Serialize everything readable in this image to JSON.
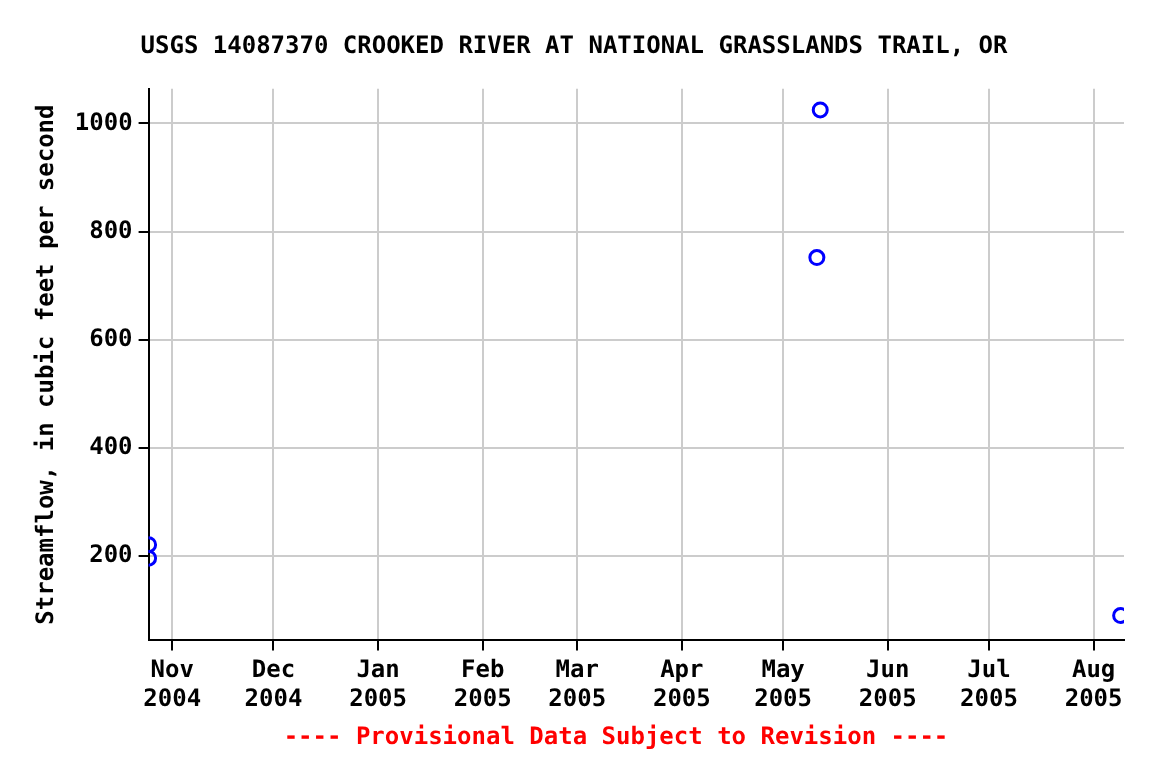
{
  "chart_data": {
    "type": "scatter",
    "title": "USGS 14087370 CROOKED RIVER AT NATIONAL GRASSLANDS TRAIL, OR",
    "ylabel": "Streamflow, in cubic feet per second",
    "x": [
      "2004-10-25",
      "2004-10-25",
      "2005-05-11",
      "2005-05-12",
      "2005-08-09"
    ],
    "series": [
      {
        "color": "#0000ff",
        "values": [
          221,
          196,
          752,
          1025,
          90
        ]
      }
    ],
    "xlim": [
      "2004-10-25",
      "2005-08-10"
    ],
    "xticks": [
      {
        "value": "2004-11-01",
        "label": "Nov 2004"
      },
      {
        "value": "2004-12-01",
        "label": "Dec 2004"
      },
      {
        "value": "2005-01-01",
        "label": "Jan 2005"
      },
      {
        "value": "2005-02-01",
        "label": "Feb 2005"
      },
      {
        "value": "2005-03-01",
        "label": "Mar 2005"
      },
      {
        "value": "2005-04-01",
        "label": "Apr 2005"
      },
      {
        "value": "2005-05-01",
        "label": "May 2005"
      },
      {
        "value": "2005-06-01",
        "label": "Jun 2005"
      },
      {
        "value": "2005-07-01",
        "label": "Jul 2005"
      },
      {
        "value": "2005-08-01",
        "label": "Aug 2005"
      }
    ],
    "ylim": [
      44,
      1064
    ],
    "yticks": [
      200,
      400,
      600,
      800,
      1000
    ],
    "grid": true,
    "marker": "circle",
    "legend": false,
    "annotations": [
      "---- Provisional Data Subject to Revision ----"
    ]
  }
}
